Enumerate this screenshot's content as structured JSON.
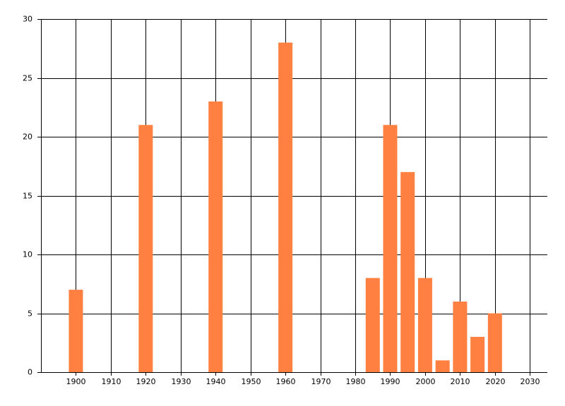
{
  "chart_data": {
    "type": "bar",
    "x": [
      1900,
      1920,
      1940,
      1960,
      1985,
      1990,
      1995,
      2000,
      2005,
      2010,
      2015,
      2020
    ],
    "values": [
      7,
      21,
      23,
      28,
      8,
      21,
      17,
      8,
      1,
      6,
      3,
      5
    ],
    "color": "#ff8040",
    "xlim": [
      1890,
      2035
    ],
    "xticks": [
      1900,
      1910,
      1920,
      1930,
      1940,
      1950,
      1960,
      1970,
      1980,
      1990,
      2000,
      2010,
      2020,
      2030
    ],
    "ylim": [
      0,
      30
    ],
    "yticks": [
      0,
      5,
      10,
      15,
      20,
      25,
      30
    ],
    "grid": true
  }
}
